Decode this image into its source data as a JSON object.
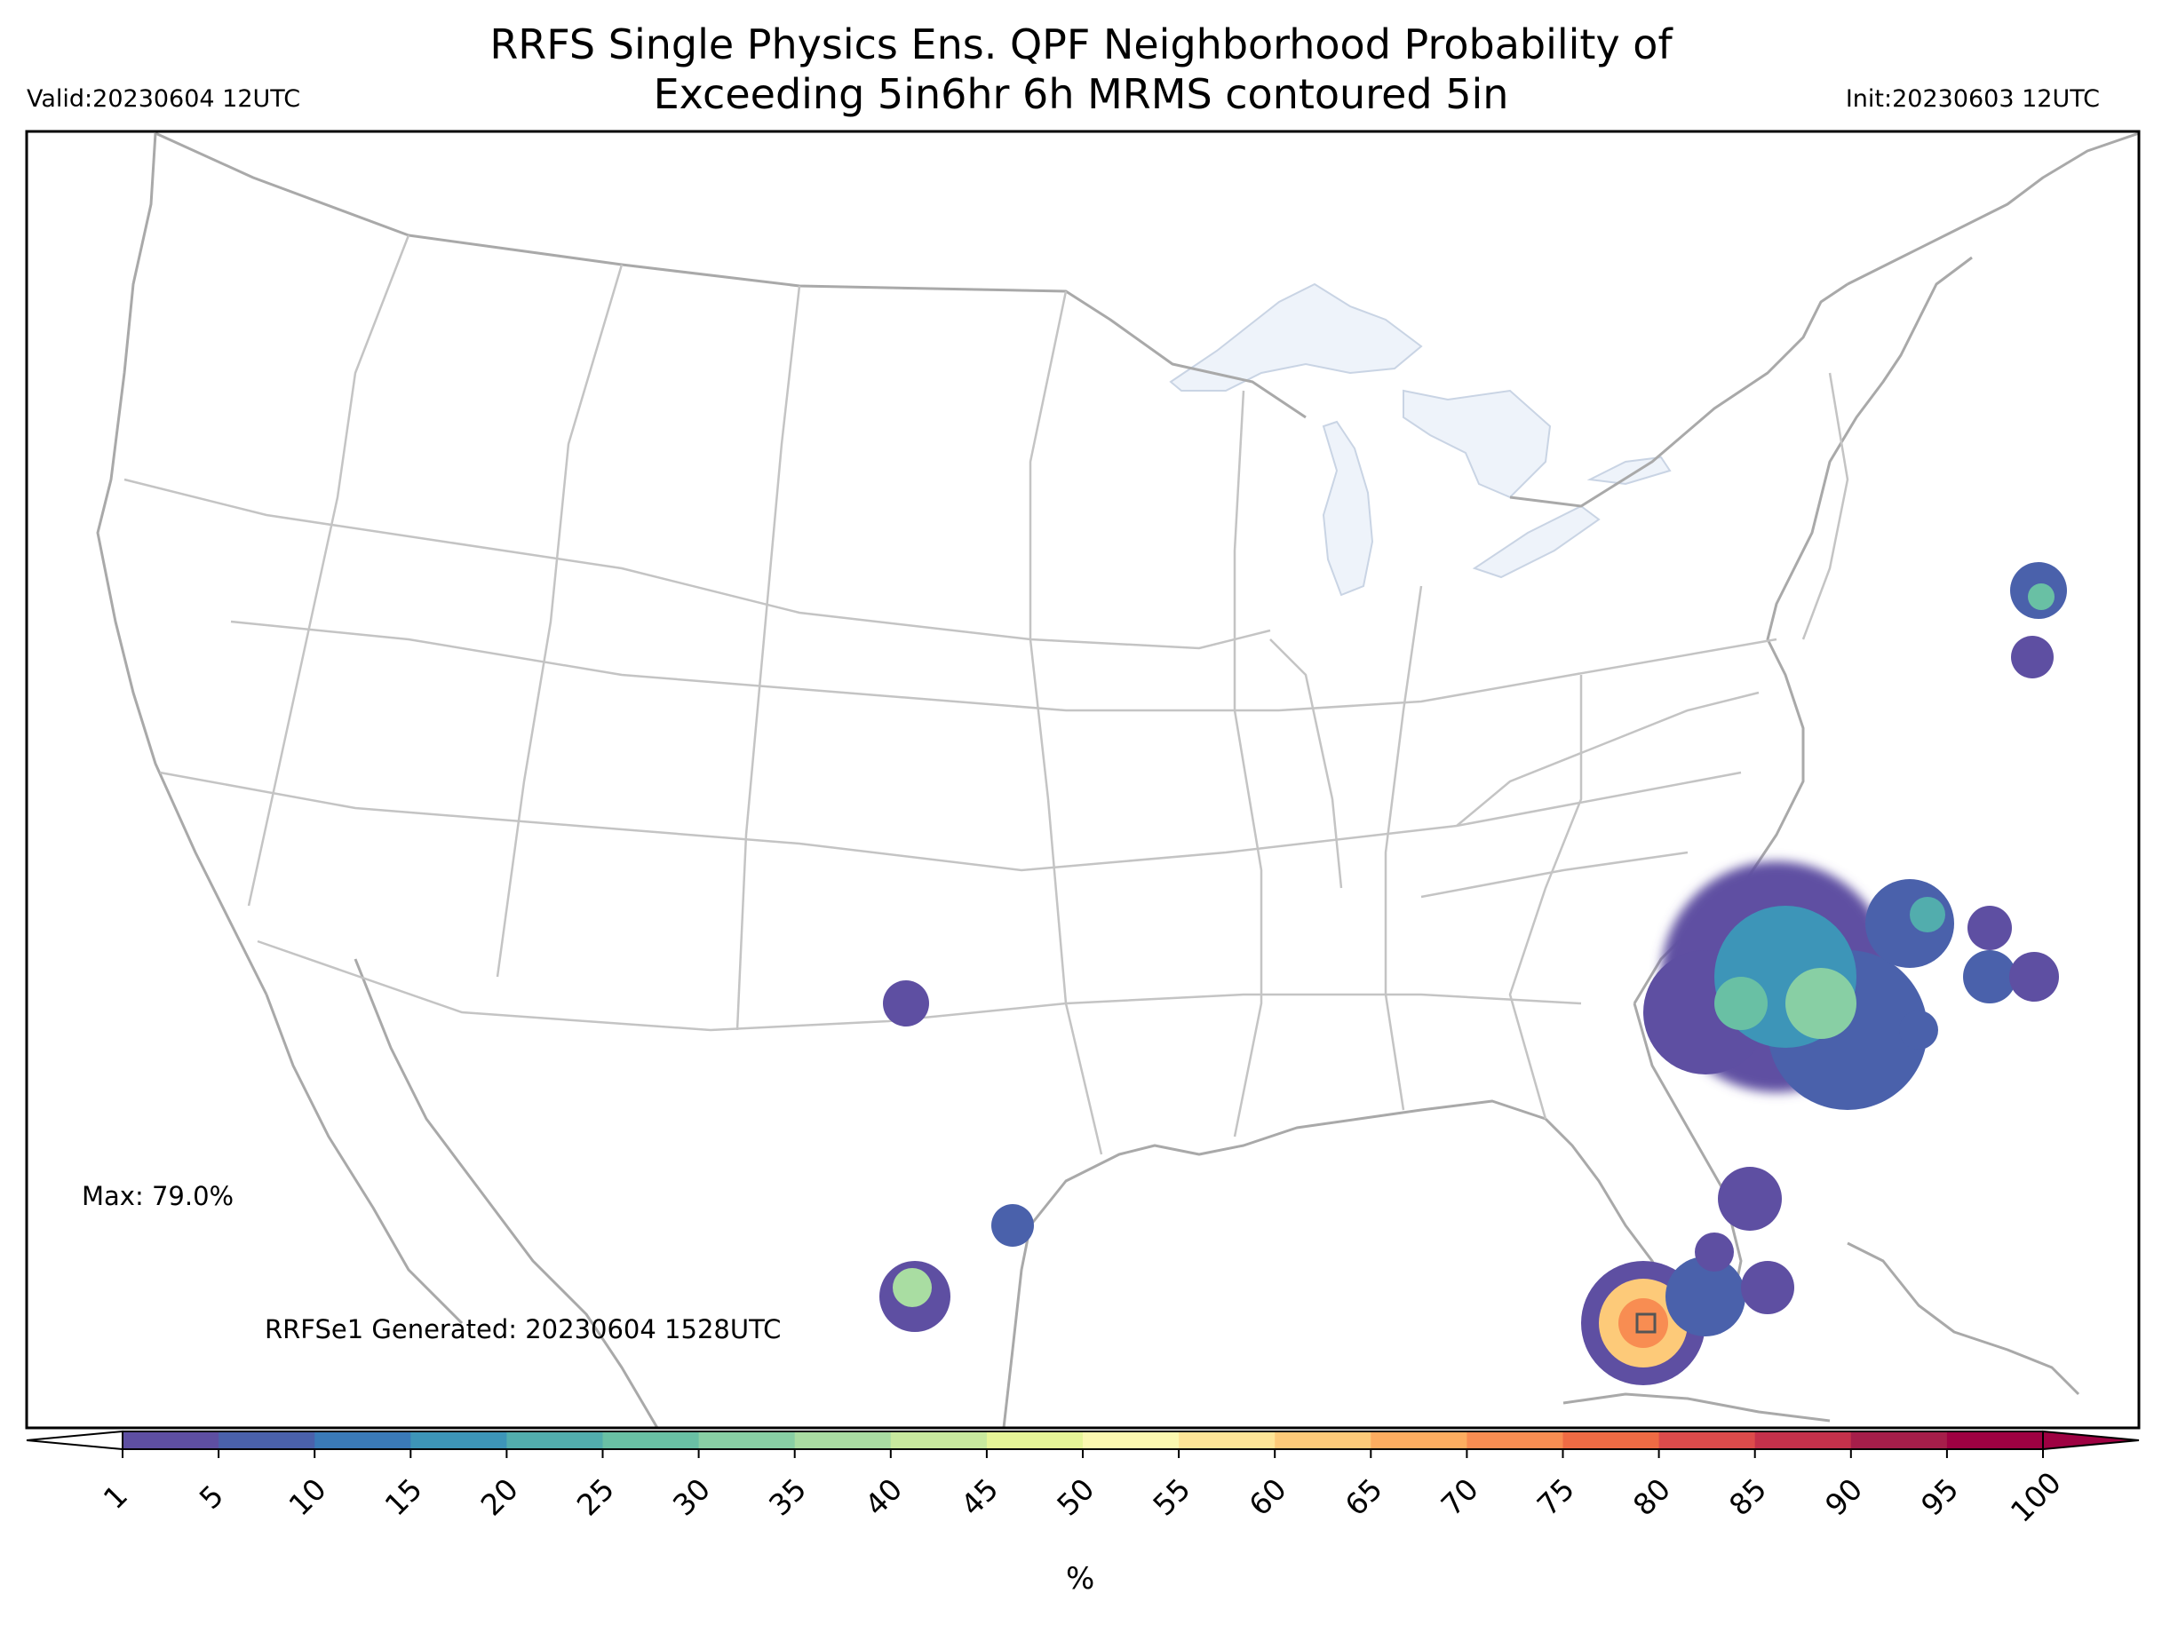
{
  "title_line1": "RRFS Single Physics Ens. QPF Neighborhood Probability of",
  "title_line2": "Exceeding 5in6hr 6h MRMS contoured 5in",
  "valid": "Valid:20230604 12UTC",
  "init": "Init:20230603 12UTC",
  "max_label": "Max: 79.0%",
  "generated_label": "RRFSe1 Generated: 20230604 1528UTC",
  "colorbar": {
    "ticks": [
      "1",
      "5",
      "10",
      "15",
      "20",
      "25",
      "30",
      "35",
      "40",
      "45",
      "50",
      "55",
      "60",
      "65",
      "70",
      "75",
      "80",
      "85",
      "90",
      "95",
      "100"
    ],
    "colors": [
      "#5e4fa2",
      "#4a61ab",
      "#3a7ab8",
      "#3d95b8",
      "#52adad",
      "#69c0a4",
      "#88cfa4",
      "#a9dda2",
      "#c8e99e",
      "#e6f598",
      "#fbf8b0",
      "#fee597",
      "#fdca79",
      "#fdad60",
      "#f88d52",
      "#ef6b44",
      "#dd4b4b",
      "#c5314b",
      "#a61e4a",
      "#9e0142"
    ],
    "unit": "%"
  },
  "colors": {
    "state_lines": "#bdbdbd",
    "coast_lines": "#a9a9a9",
    "lakes": "#eef3fa",
    "frame": "#000000"
  }
}
